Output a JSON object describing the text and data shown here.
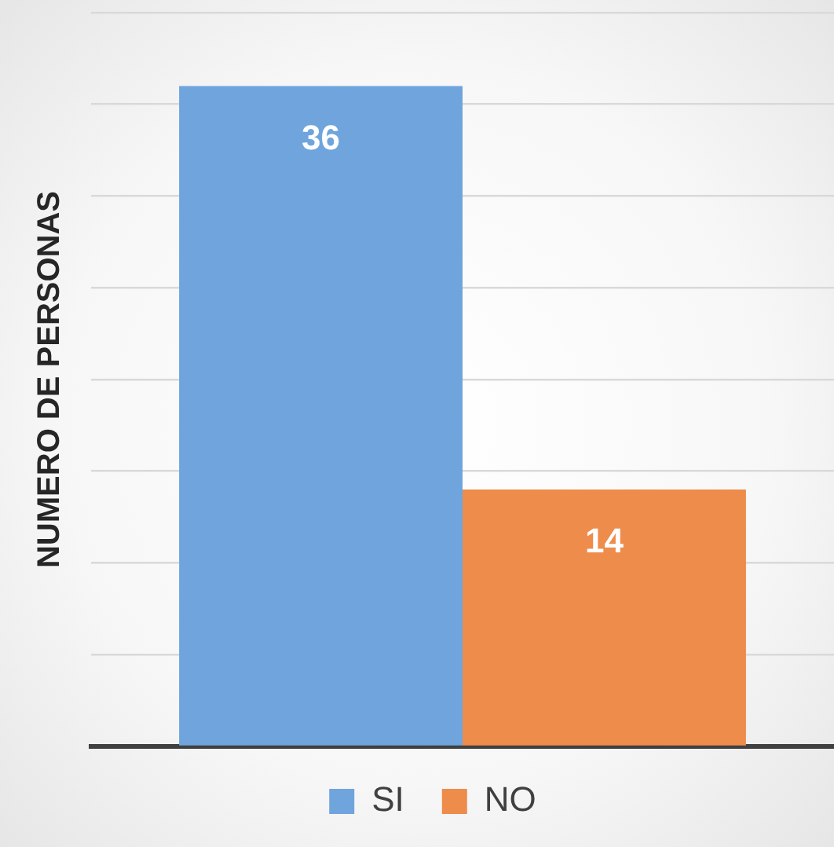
{
  "chart_data": {
    "type": "bar",
    "ylabel": "NUMERO DE PERSONAS",
    "categories": [
      null
    ],
    "series": [
      {
        "name": "SI",
        "color": "#6fa5dc",
        "values": [
          36
        ]
      },
      {
        "name": "NO",
        "color": "#ee8c4c",
        "values": [
          14
        ]
      }
    ],
    "ylim": [
      0,
      40
    ],
    "yticks": [
      0,
      5,
      10,
      15,
      20,
      25,
      30,
      35,
      40
    ],
    "tick_labels": false,
    "grid": "y",
    "legend": "bottom",
    "data_labels": true
  }
}
